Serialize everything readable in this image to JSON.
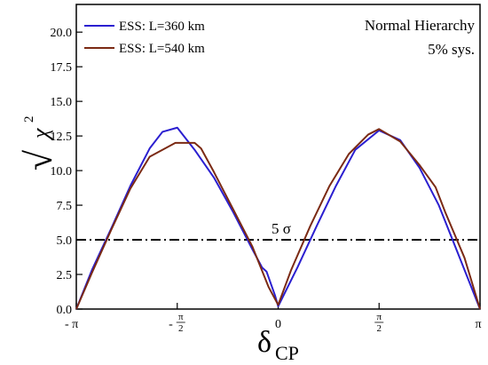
{
  "chart_data": {
    "type": "line",
    "title": "",
    "xlabel": "δ_CP",
    "ylabel": "√χ²",
    "xlim": [
      -3.14159,
      3.14159
    ],
    "ylim": [
      0,
      22
    ],
    "grid": false,
    "legend_position": "top-left",
    "x_ticks": [
      {
        "value": -3.14159,
        "label": "- π"
      },
      {
        "value": -1.5708,
        "label": "- π/2"
      },
      {
        "value": 0,
        "label": "0"
      },
      {
        "value": 1.5708,
        "label": "π/2"
      },
      {
        "value": 3.14159,
        "label": "π"
      }
    ],
    "y_ticks": [
      0,
      2.5,
      5,
      7.5,
      10,
      12.5,
      15,
      17.5,
      20
    ],
    "y_tick_labels": [
      "0.0",
      "2.5",
      "5.0",
      "7.5",
      "10.0",
      "12.5",
      "15.0",
      "17.5",
      "20.0"
    ],
    "series": [
      {
        "name": "ESS: L=360 km",
        "color": "#2b1fd0",
        "x": [
          -3.1416,
          -2.9,
          -2.6,
          -2.3,
          -2.0,
          -1.8,
          -1.57,
          -1.3,
          -1.0,
          -0.7,
          -0.4,
          -0.25,
          -0.18,
          -0.05,
          0.0,
          0.3,
          0.6,
          0.9,
          1.2,
          1.57,
          1.9,
          2.2,
          2.5,
          2.8,
          3.1416
        ],
        "y": [
          0.0,
          2.8,
          5.8,
          8.9,
          11.6,
          12.8,
          13.1,
          11.5,
          9.5,
          7.0,
          4.3,
          3.0,
          2.7,
          1.0,
          0.2,
          3.0,
          6.0,
          8.9,
          11.5,
          12.9,
          12.2,
          10.2,
          7.5,
          4.0,
          0.0
        ]
      },
      {
        "name": "ESS: L=540 km",
        "color": "#7b2a14",
        "x": [
          -3.1416,
          -2.9,
          -2.6,
          -2.3,
          -2.0,
          -1.6,
          -1.3,
          -1.2,
          -1.0,
          -0.7,
          -0.4,
          -0.15,
          0.0,
          0.2,
          0.5,
          0.8,
          1.1,
          1.4,
          1.57,
          1.9,
          2.2,
          2.45,
          2.6,
          2.9,
          3.1416
        ],
        "y": [
          0.0,
          2.6,
          5.7,
          8.7,
          11.0,
          12.0,
          12.0,
          11.6,
          9.9,
          7.2,
          4.5,
          1.6,
          0.3,
          2.8,
          6.0,
          8.9,
          11.2,
          12.6,
          13.0,
          12.1,
          10.4,
          8.8,
          7.0,
          3.7,
          0.0
        ]
      }
    ],
    "reference_lines": [
      {
        "y": 5.0,
        "style": "dash-dot",
        "label": "5 σ"
      }
    ],
    "annotations": [
      "Normal Hierarchy",
      "5% sys."
    ]
  }
}
